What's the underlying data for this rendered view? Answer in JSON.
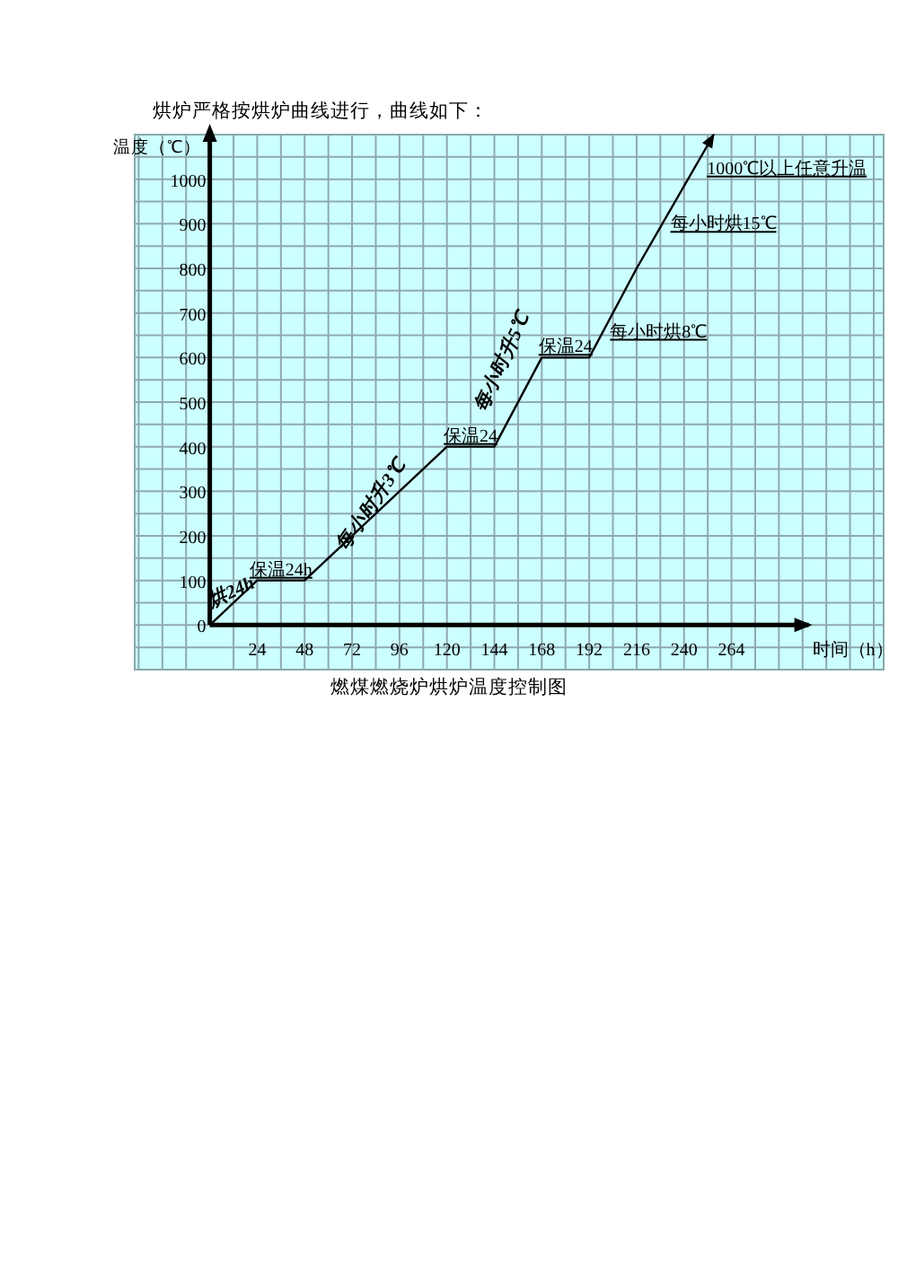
{
  "chart_data": {
    "type": "line",
    "title": "烘炉严格按烘炉曲线进行，曲线如下：",
    "ylabel": "温度（℃）",
    "xlabel": "时间（h）",
    "x": [
      0,
      24,
      48,
      120,
      144,
      168,
      192,
      216,
      255
    ],
    "series": [
      {
        "color": "#000000",
        "values": [
          0,
          100,
          100,
          400,
          400,
          600,
          600,
          800,
          1100
        ]
      }
    ],
    "xlim": [
      -38,
      341
    ],
    "ylim": [
      -100,
      1100
    ],
    "xticks": [
      {
        "value": -36,
        "label": null
      },
      {
        "value": -24,
        "label": null
      },
      {
        "value": -12,
        "label": null
      },
      {
        "value": 12,
        "label": null
      },
      24,
      {
        "value": 36,
        "label": null
      },
      48,
      {
        "value": 60,
        "label": null
      },
      72,
      {
        "value": 84,
        "label": null
      },
      96,
      {
        "value": 108,
        "label": null
      },
      120,
      {
        "value": 132,
        "label": null
      },
      144,
      {
        "value": 156,
        "label": null
      },
      168,
      {
        "value": 180,
        "label": null
      },
      192,
      {
        "value": 204,
        "label": null
      },
      216,
      {
        "value": 228,
        "label": null
      },
      240,
      {
        "value": 252,
        "label": null
      },
      264,
      {
        "value": 276,
        "label": null
      },
      {
        "value": 288,
        "label": null
      },
      {
        "value": 300,
        "label": null
      },
      {
        "value": 312,
        "label": null
      },
      {
        "value": 324,
        "label": null
      },
      {
        "value": 336,
        "label": null
      }
    ],
    "yticks": [
      {
        "value": -50,
        "label": null
      },
      0,
      {
        "value": 50,
        "label": null
      },
      100,
      {
        "value": 150,
        "label": null
      },
      200,
      {
        "value": 250,
        "label": null
      },
      300,
      {
        "value": 350,
        "label": null
      },
      400,
      {
        "value": 450,
        "label": null
      },
      500,
      {
        "value": 550,
        "label": null
      },
      600,
      {
        "value": 650,
        "label": null
      },
      700,
      {
        "value": 750,
        "label": null
      },
      800,
      {
        "value": 850,
        "label": null
      },
      900,
      {
        "value": 950,
        "label": null
      },
      1000,
      {
        "value": 1050,
        "label": null
      }
    ],
    "grid": true,
    "marker": "none",
    "line_style": "solid",
    "annotations": [
      {
        "text": "烘24h",
        "x": 12,
        "y": 50
      },
      {
        "text": "保温24h",
        "x": 36,
        "y": 100
      },
      {
        "text": "每小时升3℃",
        "x": 84,
        "y": 250
      },
      {
        "text": "保温24",
        "x": 132,
        "y": 400
      },
      {
        "text": "每小时升5℃",
        "x": 156,
        "y": 500
      },
      {
        "text": "保温24",
        "x": 180,
        "y": 600
      },
      {
        "text": "每小时烘8℃",
        "x": 198,
        "y": 650
      },
      {
        "text": "每小时烘15℃",
        "x": 229,
        "y": 900
      },
      {
        "text": "1000℃以上任意升温",
        "x": 242,
        "y": 1000
      },
      "燃煤燃烧炉烘炉温度控制图"
    ]
  }
}
